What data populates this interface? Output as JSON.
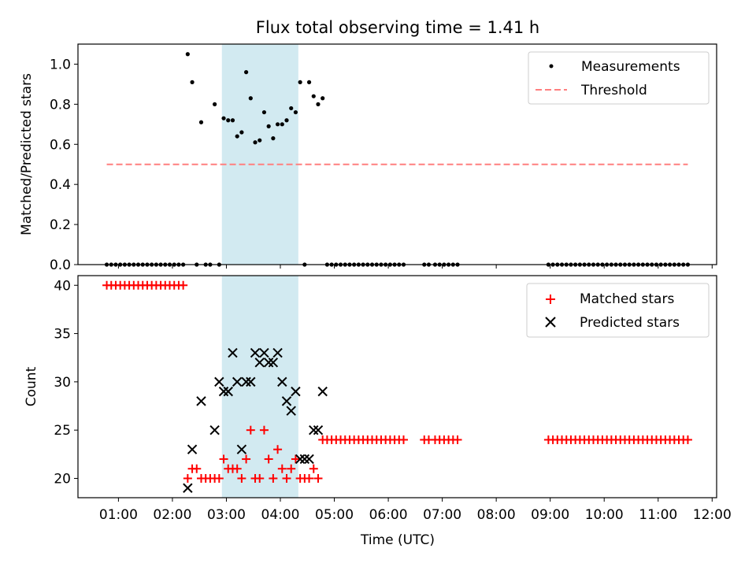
{
  "figure": {
    "title": "Flux total observing time = 1.41 h",
    "shaded_interval": {
      "start": "02:55",
      "end": "04:20",
      "color": "#add8e6"
    }
  },
  "chart_data": [
    {
      "type": "scatter",
      "title": "Flux total observing time = 1.41 h",
      "xlabel": "",
      "ylabel": "Matched/Predicted stars",
      "xlim": [
        "00:15",
        "12:05"
      ],
      "ylim": [
        0,
        1.1
      ],
      "yticks": [
        0.0,
        0.2,
        0.4,
        0.6,
        0.8,
        1.0
      ],
      "ytick_labels": [
        "0.0",
        "0.2",
        "0.4",
        "0.6",
        "0.8",
        "1.0"
      ],
      "grid": false,
      "legend": "top-right",
      "series": [
        {
          "name": "Measurements",
          "marker": "dot",
          "color": "#000000",
          "x": [
            "00:47",
            "00:52",
            "00:57",
            "01:02",
            "01:07",
            "01:12",
            "01:17",
            "01:22",
            "01:27",
            "01:32",
            "01:37",
            "01:42",
            "01:47",
            "01:52",
            "01:57",
            "02:02",
            "02:07",
            "02:12",
            "02:17",
            "02:22",
            "02:27",
            "02:32",
            "02:37",
            "02:42",
            "02:47",
            "02:52",
            "02:57",
            "03:02",
            "03:07",
            "03:12",
            "03:17",
            "03:22",
            "03:27",
            "03:32",
            "03:37",
            "03:42",
            "03:47",
            "03:52",
            "03:57",
            "04:02",
            "04:07",
            "04:12",
            "04:17",
            "04:22",
            "04:27",
            "04:32",
            "04:37",
            "04:42",
            "04:47",
            "04:52",
            "04:57",
            "05:02",
            "05:07",
            "05:12",
            "05:17",
            "05:22",
            "05:27",
            "05:32",
            "05:37",
            "05:42",
            "05:47",
            "05:52",
            "05:57",
            "06:02",
            "06:07",
            "06:12",
            "06:17",
            "06:40",
            "06:45",
            "06:52",
            "06:57",
            "07:02",
            "07:07",
            "07:12",
            "07:17",
            "08:58",
            "09:03",
            "09:08",
            "09:13",
            "09:18",
            "09:23",
            "09:28",
            "09:33",
            "09:38",
            "09:43",
            "09:48",
            "09:53",
            "09:58",
            "10:03",
            "10:08",
            "10:13",
            "10:18",
            "10:23",
            "10:28",
            "10:33",
            "10:38",
            "10:43",
            "10:48",
            "10:53",
            "10:58",
            "11:03",
            "11:08",
            "11:13",
            "11:18",
            "11:23",
            "11:28",
            "11:33"
          ],
          "y": [
            0,
            0,
            0,
            0,
            0,
            0,
            0,
            0,
            0,
            0,
            0,
            0,
            0,
            0,
            0,
            0,
            0,
            0,
            1.05,
            0.91,
            0,
            0.71,
            0,
            0,
            0.8,
            0,
            0.73,
            0.72,
            0.72,
            0.64,
            0.66,
            0.96,
            0.83,
            0.61,
            0.62,
            0.76,
            0.69,
            0.63,
            0.7,
            0.7,
            0.72,
            0.78,
            0.76,
            0.91,
            0,
            0.91,
            0.84,
            0.8,
            0.83,
            0,
            0,
            0,
            0,
            0,
            0,
            0,
            0,
            0,
            0,
            0,
            0,
            0,
            0,
            0,
            0,
            0,
            0,
            0,
            0,
            0,
            0,
            0,
            0,
            0,
            0,
            0,
            0,
            0,
            0,
            0,
            0,
            0,
            0,
            0,
            0,
            0,
            0,
            0,
            0,
            0,
            0,
            0,
            0,
            0,
            0,
            0,
            0,
            0,
            0,
            0,
            0,
            0,
            0,
            0,
            0,
            0,
            0
          ]
        },
        {
          "name": "Threshold",
          "marker": "dashed-line",
          "color": "#ff7f7f",
          "x": [
            "00:47",
            "11:33"
          ],
          "y": [
            0.5,
            0.5
          ]
        }
      ]
    },
    {
      "type": "scatter",
      "title": "",
      "xlabel": "Time (UTC)",
      "ylabel": "Count",
      "xlim": [
        "00:15",
        "12:05"
      ],
      "ylim": [
        18,
        41
      ],
      "yticks": [
        20,
        25,
        30,
        35,
        40
      ],
      "ytick_labels": [
        "20",
        "25",
        "30",
        "35",
        "40"
      ],
      "xtick_labels": [
        "01:00",
        "02:00",
        "03:00",
        "04:00",
        "05:00",
        "06:00",
        "07:00",
        "08:00",
        "09:00",
        "10:00",
        "11:00",
        "12:00"
      ],
      "grid": false,
      "legend": "top-right",
      "series": [
        {
          "name": "Matched stars",
          "marker": "plus",
          "color": "#ff0000",
          "x": [
            "00:47",
            "00:52",
            "00:57",
            "01:02",
            "01:07",
            "01:12",
            "01:17",
            "01:22",
            "01:27",
            "01:32",
            "01:37",
            "01:42",
            "01:47",
            "01:52",
            "01:57",
            "02:02",
            "02:07",
            "02:12",
            "02:17",
            "02:22",
            "02:27",
            "02:32",
            "02:37",
            "02:42",
            "02:47",
            "02:52",
            "02:57",
            "03:02",
            "03:07",
            "03:12",
            "03:17",
            "03:22",
            "03:27",
            "03:32",
            "03:37",
            "03:42",
            "03:47",
            "03:52",
            "03:57",
            "04:02",
            "04:07",
            "04:12",
            "04:17",
            "04:22",
            "04:27",
            "04:32",
            "04:37",
            "04:42",
            "04:47",
            "04:52",
            "04:57",
            "05:02",
            "05:07",
            "05:12",
            "05:17",
            "05:22",
            "05:27",
            "05:32",
            "05:37",
            "05:42",
            "05:47",
            "05:52",
            "05:57",
            "06:02",
            "06:07",
            "06:12",
            "06:17",
            "06:40",
            "06:45",
            "06:52",
            "06:57",
            "07:02",
            "07:07",
            "07:12",
            "07:17",
            "08:58",
            "09:03",
            "09:08",
            "09:13",
            "09:18",
            "09:23",
            "09:28",
            "09:33",
            "09:38",
            "09:43",
            "09:48",
            "09:53",
            "09:58",
            "10:03",
            "10:08",
            "10:13",
            "10:18",
            "10:23",
            "10:28",
            "10:33",
            "10:38",
            "10:43",
            "10:48",
            "10:53",
            "10:58",
            "11:03",
            "11:08",
            "11:13",
            "11:18",
            "11:23",
            "11:28",
            "11:33"
          ],
          "y": [
            40,
            40,
            40,
            40,
            40,
            40,
            40,
            40,
            40,
            40,
            40,
            40,
            40,
            40,
            40,
            40,
            40,
            40,
            20,
            21,
            21,
            20,
            20,
            20,
            20,
            20,
            22,
            21,
            21,
            21,
            20,
            22,
            25,
            20,
            20,
            25,
            22,
            20,
            23,
            21,
            20,
            21,
            22,
            20,
            20,
            20,
            21,
            20,
            24,
            24,
            24,
            24,
            24,
            24,
            24,
            24,
            24,
            24,
            24,
            24,
            24,
            24,
            24,
            24,
            24,
            24,
            24,
            24,
            24,
            24,
            24,
            24,
            24,
            24,
            24,
            24,
            24,
            24,
            24,
            24,
            24,
            24,
            24,
            24,
            24,
            24,
            24,
            24,
            24,
            24,
            24,
            24,
            24,
            24,
            24,
            24,
            24,
            24,
            24,
            24,
            24,
            24,
            24,
            24,
            24,
            24,
            24
          ]
        },
        {
          "name": "Predicted stars",
          "marker": "x",
          "color": "#000000",
          "x": [
            "02:17",
            "02:22",
            "02:32",
            "02:47",
            "02:52",
            "02:57",
            "03:02",
            "03:07",
            "03:12",
            "03:17",
            "03:22",
            "03:27",
            "03:32",
            "03:37",
            "03:42",
            "03:47",
            "03:52",
            "03:57",
            "04:02",
            "04:07",
            "04:12",
            "04:17",
            "04:22",
            "04:27",
            "04:32",
            "04:37",
            "04:42",
            "04:47"
          ],
          "y": [
            19,
            23,
            28,
            25,
            30,
            29,
            29,
            33,
            30,
            23,
            30,
            30,
            33,
            32,
            33,
            32,
            32,
            33,
            30,
            28,
            27,
            29,
            22,
            22,
            22,
            25,
            25,
            29
          ]
        }
      ]
    }
  ]
}
